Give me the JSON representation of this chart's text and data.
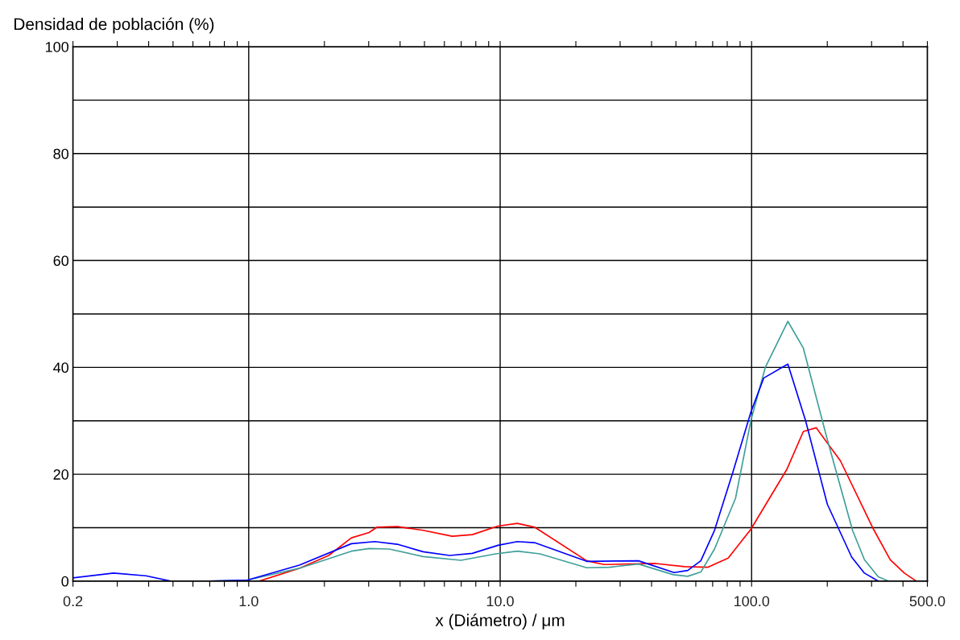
{
  "chart_data": {
    "type": "line",
    "xlabel": "x (Diámetro) / μm",
    "ylabel": "Densidad de población (%)",
    "log": "x",
    "grid": true,
    "marker": "none",
    "line_style": "solid",
    "xlim": [
      0.2,
      500
    ],
    "ylim": [
      0,
      100
    ],
    "xticks": [
      {
        "value": 0.2,
        "label": "0.2"
      },
      {
        "value": 0.3,
        "label": null
      },
      {
        "value": 0.4,
        "label": null
      },
      {
        "value": 0.5,
        "label": null
      },
      {
        "value": 0.6,
        "label": null
      },
      {
        "value": 0.7,
        "label": null
      },
      {
        "value": 0.8,
        "label": null
      },
      {
        "value": 0.9,
        "label": null
      },
      {
        "value": 1,
        "label": "1.0"
      },
      {
        "value": 2,
        "label": null
      },
      {
        "value": 3,
        "label": null
      },
      {
        "value": 4,
        "label": null
      },
      {
        "value": 5,
        "label": null
      },
      {
        "value": 6,
        "label": null
      },
      {
        "value": 7,
        "label": null
      },
      {
        "value": 8,
        "label": null
      },
      {
        "value": 9,
        "label": null
      },
      {
        "value": 10,
        "label": "10.0"
      },
      {
        "value": 20,
        "label": null
      },
      {
        "value": 30,
        "label": null
      },
      {
        "value": 40,
        "label": null
      },
      {
        "value": 50,
        "label": null
      },
      {
        "value": 60,
        "label": null
      },
      {
        "value": 70,
        "label": null
      },
      {
        "value": 80,
        "label": null
      },
      {
        "value": 90,
        "label": null
      },
      {
        "value": 100,
        "label": "100.0"
      },
      {
        "value": 200,
        "label": null
      },
      {
        "value": 300,
        "label": null
      },
      {
        "value": 400,
        "label": null
      },
      {
        "value": 500,
        "label": "500.0"
      }
    ],
    "yticks": [
      0,
      {
        "value": 10,
        "label": null
      },
      20,
      {
        "value": 30,
        "label": null
      },
      40,
      {
        "value": 50,
        "label": null
      },
      60,
      {
        "value": 70,
        "label": null
      },
      80,
      {
        "value": 90,
        "label": null
      },
      100
    ],
    "series": [
      {
        "color": "#ff0000",
        "x": [
          0.7,
          1.1,
          1.59,
          2.08,
          2.56,
          3.01,
          3.24,
          3.9,
          4.94,
          6.44,
          7.75,
          9.8,
          11.7,
          13.7,
          22.1,
          25.9,
          41.5,
          54.1,
          67.1,
          80.7,
          99.3,
          138.4,
          160.6,
          180.7,
          225.6,
          303,
          356,
          405,
          452
        ],
        "values": [
          0,
          0,
          2.4,
          4.8,
          8.1,
          9.1,
          10.1,
          10.2,
          9.5,
          8.4,
          8.7,
          10.3,
          10.8,
          10.1,
          3.8,
          3.1,
          3.3,
          2.7,
          2.6,
          4.3,
          9.7,
          21,
          28,
          28.7,
          22.5,
          10,
          4,
          1.5,
          0
        ]
      },
      {
        "color": "#3f9f9a",
        "x": [
          0.7,
          0.99,
          1.59,
          2.56,
          3.01,
          3.62,
          4.94,
          6.99,
          9.6,
          11.7,
          14.4,
          22.1,
          27.2,
          35.5,
          48.8,
          55.7,
          62.8,
          71.2,
          86.3,
          99.3,
          113.4,
          139.4,
          160.6,
          200,
          252,
          281,
          319,
          351
        ],
        "values": [
          0,
          0.2,
          2.4,
          5.6,
          6.1,
          6.0,
          4.6,
          3.9,
          5.1,
          5.6,
          5.1,
          2.5,
          2.6,
          3.2,
          1.2,
          0.9,
          1.7,
          6,
          15.5,
          30,
          40,
          48.6,
          43.6,
          26.5,
          9.5,
          4,
          0.8,
          0
        ]
      },
      {
        "color": "#0000ff",
        "x": [
          0.2,
          0.29,
          0.39,
          0.49,
          0.7,
          0.99,
          1.59,
          2.56,
          3.17,
          3.9,
          4.94,
          6.3,
          7.75,
          9.8,
          11.7,
          13.7,
          22.1,
          35.5,
          49.2,
          55.7,
          62.8,
          71.2,
          84.4,
          99.3,
          111.7,
          139.4,
          164,
          200,
          250,
          281,
          319
        ],
        "values": [
          0.6,
          1.5,
          1.0,
          0,
          0,
          0.2,
          3,
          7,
          7.4,
          6.9,
          5.5,
          4.8,
          5.2,
          6.7,
          7.4,
          7.2,
          3.7,
          3.8,
          1.6,
          2.0,
          3.8,
          9.5,
          20.5,
          31.6,
          38,
          40.6,
          30,
          14.4,
          4.5,
          1.5,
          0
        ]
      }
    ]
  }
}
